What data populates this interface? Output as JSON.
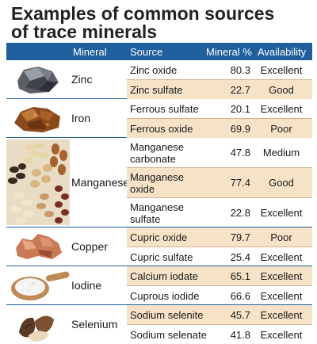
{
  "title": {
    "line1": "Examples of common sources",
    "line2": "of trace minerals"
  },
  "headers": {
    "mineral": "Mineral",
    "source": "Source",
    "percent": "Mineral %",
    "availability": "Availability"
  },
  "groups": [
    {
      "mineral": "Zinc",
      "image": "zinc-ore-icon",
      "rows": [
        {
          "source": "Zinc oxide",
          "percent": "80.3",
          "availability": "Excellent"
        },
        {
          "source": "Zinc sulfate",
          "percent": "22.7",
          "availability": "Good"
        }
      ]
    },
    {
      "mineral": "Iron",
      "image": "iron-ore-icon",
      "rows": [
        {
          "source": "Ferrous sulfate",
          "percent": "20.1",
          "availability": "Excellent"
        },
        {
          "source": "Ferrous oxide",
          "percent": "69.9",
          "availability": "Poor"
        }
      ]
    },
    {
      "mineral": "Manganese",
      "image": "nuts-grains-icon",
      "rows": [
        {
          "source": "Manganese carbonate",
          "percent": "47.8",
          "availability": "Medium"
        },
        {
          "source": "Manganese oxide",
          "percent": "77.4",
          "availability": "Good"
        },
        {
          "source": "Manganese sulfate",
          "percent": "22.8",
          "availability": "Excellent"
        }
      ]
    },
    {
      "mineral": "Copper",
      "image": "copper-nugget-icon",
      "rows": [
        {
          "source": "Cupric oxide",
          "percent": "79.7",
          "availability": "Poor"
        },
        {
          "source": "Cupric sulfate",
          "percent": "25.4",
          "availability": "Excellent"
        }
      ]
    },
    {
      "mineral": "Iodine",
      "image": "salt-spoon-icon",
      "rows": [
        {
          "source": "Calcium iodate",
          "percent": "65.1",
          "availability": "Excellent"
        },
        {
          "source": "Cuprous iodide",
          "percent": "66.6",
          "availability": "Excellent"
        }
      ]
    },
    {
      "mineral": "Selenium",
      "image": "brazil-nuts-icon",
      "rows": [
        {
          "source": "Sodium selenite",
          "percent": "45.7",
          "availability": "Excellent"
        },
        {
          "source": "Sodium selenate",
          "percent": "41.8",
          "availability": "Excellent"
        }
      ]
    }
  ]
}
